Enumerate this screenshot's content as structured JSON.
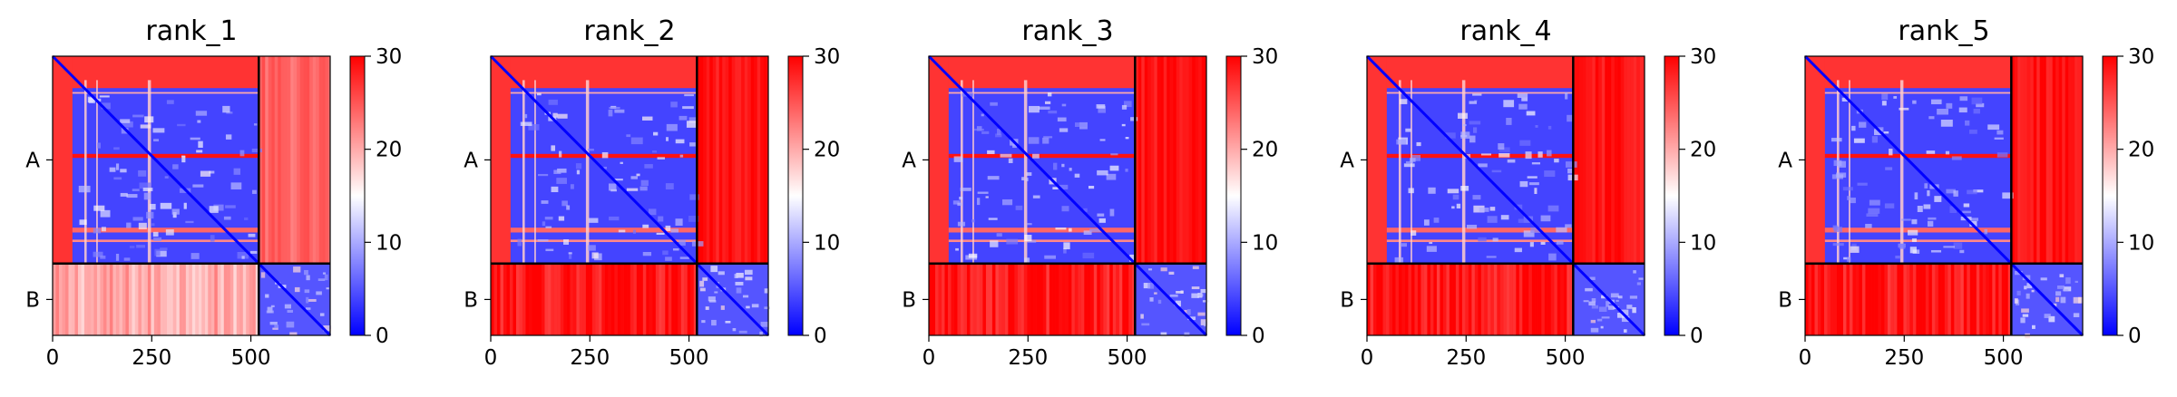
{
  "figure": {
    "colors": {
      "low": "#0000ff",
      "mid": "#ffffff",
      "high": "#ff0000",
      "outline": "#000000"
    },
    "colormap": "bwr"
  },
  "chart_data": [
    {
      "type": "heatmap",
      "title": "rank_1",
      "x": {
        "range": [
          0,
          700
        ],
        "ticks": [
          0,
          250,
          500
        ]
      },
      "y": {
        "ticks": [
          "A",
          "B"
        ],
        "chain_boundary": 520
      },
      "colorbar": {
        "range": [
          0,
          30
        ],
        "ticks": [
          0,
          10,
          20,
          30
        ]
      },
      "blocks": {
        "A-A": "mostly blue with red stripes",
        "A-B": "light red",
        "B-A": "pale red / white",
        "B-B": "blue"
      }
    },
    {
      "type": "heatmap",
      "title": "rank_2",
      "x": {
        "range": [
          0,
          700
        ],
        "ticks": [
          0,
          250,
          500
        ]
      },
      "y": {
        "ticks": [
          "A",
          "B"
        ],
        "chain_boundary": 520
      },
      "colorbar": {
        "range": [
          0,
          30
        ],
        "ticks": [
          0,
          10,
          20,
          30
        ]
      },
      "blocks": {
        "A-A": "mostly blue with red stripes",
        "A-B": "red",
        "B-A": "red",
        "B-B": "blue"
      }
    },
    {
      "type": "heatmap",
      "title": "rank_3",
      "x": {
        "range": [
          0,
          700
        ],
        "ticks": [
          0,
          250,
          500
        ]
      },
      "y": {
        "ticks": [
          "A",
          "B"
        ],
        "chain_boundary": 520
      },
      "colorbar": {
        "range": [
          0,
          30
        ],
        "ticks": [
          0,
          10,
          20,
          30
        ]
      },
      "blocks": {
        "A-A": "mostly blue with red stripes",
        "A-B": "red",
        "B-A": "red",
        "B-B": "blue"
      }
    },
    {
      "type": "heatmap",
      "title": "rank_4",
      "x": {
        "range": [
          0,
          700
        ],
        "ticks": [
          0,
          250,
          500
        ]
      },
      "y": {
        "ticks": [
          "A",
          "B"
        ],
        "chain_boundary": 520
      },
      "colorbar": {
        "range": [
          0,
          30
        ],
        "ticks": [
          0,
          10,
          20,
          30
        ]
      },
      "blocks": {
        "A-A": "mostly blue with red stripes",
        "A-B": "red",
        "B-A": "red",
        "B-B": "blue"
      }
    },
    {
      "type": "heatmap",
      "title": "rank_5",
      "x": {
        "range": [
          0,
          700
        ],
        "ticks": [
          0,
          250,
          500
        ]
      },
      "y": {
        "ticks": [
          "A",
          "B"
        ],
        "chain_boundary": 520
      },
      "colorbar": {
        "range": [
          0,
          30
        ],
        "ticks": [
          0,
          10,
          20,
          30
        ]
      },
      "blocks": {
        "A-A": "mostly blue with red stripes",
        "A-B": "red",
        "B-A": "red",
        "B-B": "blue"
      }
    }
  ]
}
